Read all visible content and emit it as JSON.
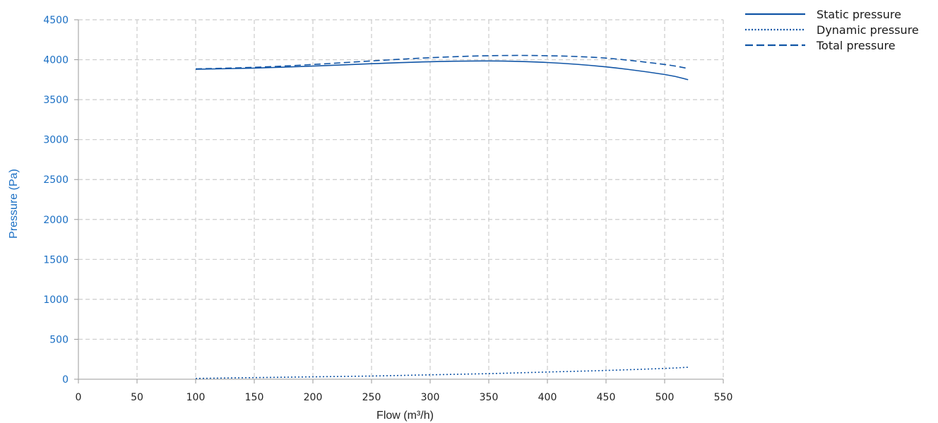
{
  "chart_data": {
    "type": "line",
    "title": "",
    "xlabel": "Flow (m³/h)",
    "ylabel": "Pressure (Pa)",
    "xlim": [
      0,
      550
    ],
    "ylim": [
      0,
      4500
    ],
    "x_ticks": [
      0,
      50,
      100,
      150,
      200,
      250,
      300,
      350,
      400,
      450,
      500,
      550
    ],
    "y_ticks": [
      0,
      500,
      1000,
      1500,
      2000,
      2500,
      3000,
      3500,
      4000,
      4500
    ],
    "grid": true,
    "legend_position": "top-right",
    "series": [
      {
        "name": "Static pressure",
        "line_style": "solid",
        "x": [
          100,
          150,
          200,
          250,
          300,
          350,
          400,
          450,
          500,
          520
        ],
        "y": [
          3880,
          3895,
          3920,
          3950,
          3975,
          3985,
          3965,
          3910,
          3815,
          3750
        ]
      },
      {
        "name": "Dynamic pressure",
        "line_style": "dotted",
        "x": [
          100,
          150,
          200,
          250,
          300,
          350,
          400,
          450,
          500,
          520
        ],
        "y": [
          10,
          20,
          30,
          40,
          55,
          70,
          90,
          110,
          135,
          150
        ]
      },
      {
        "name": "Total pressure",
        "line_style": "dashed",
        "x": [
          100,
          150,
          200,
          250,
          300,
          350,
          400,
          450,
          500,
          520
        ],
        "y": [
          3885,
          3905,
          3940,
          3985,
          4025,
          4050,
          4050,
          4020,
          3940,
          3890
        ]
      }
    ]
  },
  "colors": {
    "series": "#1155a6",
    "axis_text": "#1a6fc4",
    "x_tick_text": "#222222",
    "grid": "#cccccc"
  }
}
